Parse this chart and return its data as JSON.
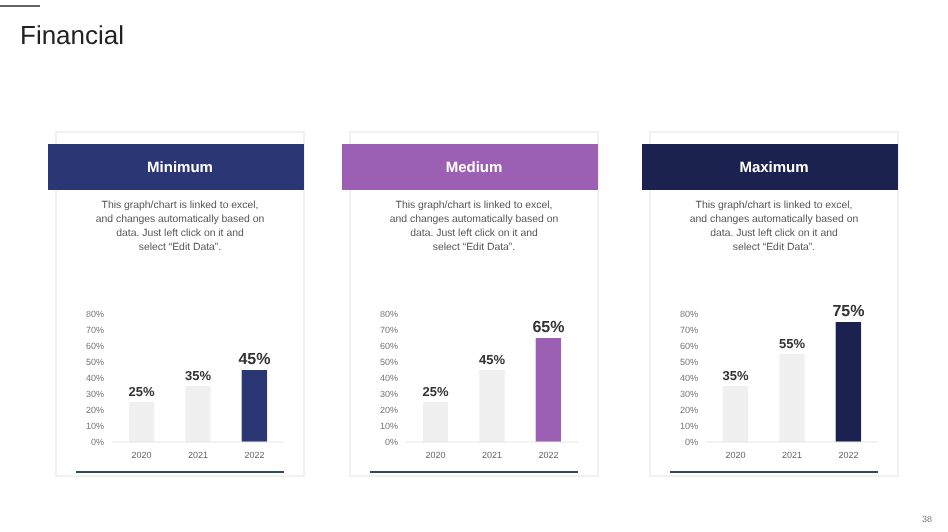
{
  "chart_data": [
    {
      "type": "bar",
      "title": "Minimum",
      "subtitle": "This graph/chart is linked to excel, and changes automatically based on data. Just left click on it and select “Edit Data”.",
      "annotations": [
        "Financial"
      ],
      "categories": [
        "2020",
        "2021",
        "2022"
      ],
      "values": [
        25,
        35,
        45
      ],
      "value_labels": [
        "25%",
        "35%",
        "45%"
      ],
      "colors": [
        "#f0f0f0",
        "#f0f0f0",
        "#2b3674"
      ],
      "ylim": [
        0,
        80
      ],
      "yticks": [
        {
          "value": 0,
          "label": "0%"
        },
        {
          "value": 10,
          "label": "10%"
        },
        {
          "value": 20,
          "label": "20%"
        },
        {
          "value": 30,
          "label": "30%"
        },
        {
          "value": 40,
          "label": "40%"
        },
        {
          "value": 50,
          "label": "50%"
        },
        {
          "value": 60,
          "label": "60%"
        },
        {
          "value": 70,
          "label": "70%"
        },
        {
          "value": 80,
          "label": "80%"
        }
      ]
    },
    {
      "type": "bar",
      "title": "Medium",
      "subtitle": "This graph/chart is linked to excel, and changes automatically based on data. Just left click on it and select “Edit Data”.",
      "categories": [
        "2020",
        "2021",
        "2022"
      ],
      "values": [
        25,
        45,
        65
      ],
      "value_labels": [
        "25%",
        "45%",
        "65%"
      ],
      "colors": [
        "#f0f0f0",
        "#f0f0f0",
        "#9b5fb4"
      ],
      "ylim": [
        0,
        80
      ],
      "yticks": [
        {
          "value": 0,
          "label": "0%"
        },
        {
          "value": 10,
          "label": "10%"
        },
        {
          "value": 20,
          "label": "20%"
        },
        {
          "value": 30,
          "label": "30%"
        },
        {
          "value": 40,
          "label": "40%"
        },
        {
          "value": 50,
          "label": "50%"
        },
        {
          "value": 60,
          "label": "60%"
        },
        {
          "value": 70,
          "label": "70%"
        },
        {
          "value": 80,
          "label": "80%"
        }
      ]
    },
    {
      "type": "bar",
      "title": "Maximum",
      "subtitle": "This graph/chart is linked to excel, and changes automatically based on data. Just left click on it and select “Edit Data”.",
      "annotations": [
        "38"
      ],
      "categories": [
        "2020",
        "2021",
        "2022"
      ],
      "values": [
        35,
        55,
        75
      ],
      "value_labels": [
        "35%",
        "55%",
        "75%"
      ],
      "colors": [
        "#f0f0f0",
        "#f0f0f0",
        "#1c2250"
      ],
      "ylim": [
        0,
        80
      ],
      "yticks": [
        {
          "value": 0,
          "label": "0%"
        },
        {
          "value": 10,
          "label": "10%"
        },
        {
          "value": 20,
          "label": "20%"
        },
        {
          "value": 30,
          "label": "30%"
        },
        {
          "value": 40,
          "label": "40%"
        },
        {
          "value": 50,
          "label": "50%"
        },
        {
          "value": 60,
          "label": "60%"
        },
        {
          "value": 70,
          "label": "70%"
        },
        {
          "value": 80,
          "label": "80%"
        }
      ]
    }
  ]
}
